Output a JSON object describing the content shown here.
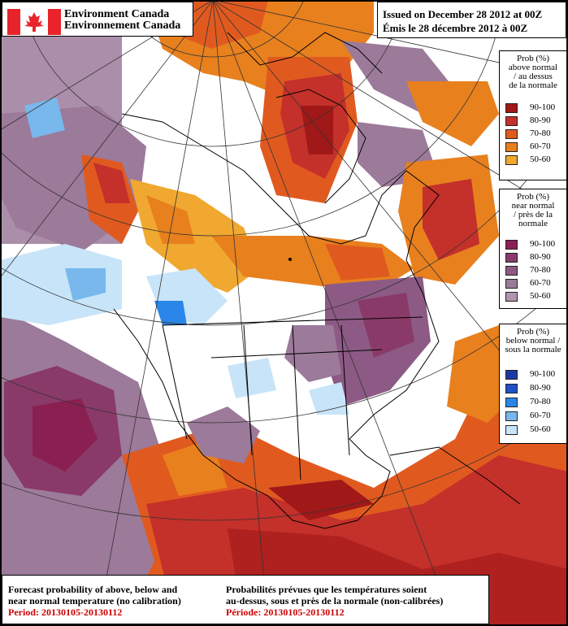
{
  "header": {
    "org_en": "Environment Canada",
    "org_fr": "Environnement Canada",
    "issued_en": "Issued on December 28 2012 at 00Z",
    "issued_fr": "Émis le 28 décembre 2012 à 00Z"
  },
  "legends": {
    "above": {
      "title": [
        "Prob (%)",
        "above normal",
        "/ au dessus",
        "de la normale"
      ],
      "items": [
        {
          "label": "90-100",
          "color": "#a01818"
        },
        {
          "label": "80-90",
          "color": "#c4302a"
        },
        {
          "label": "70-80",
          "color": "#e05a20"
        },
        {
          "label": "60-70",
          "color": "#e8801e"
        },
        {
          "label": "50-60",
          "color": "#f0a830"
        }
      ]
    },
    "near": {
      "title": [
        "Prob (%)",
        "near normal",
        "/ près de la",
        "normale"
      ],
      "items": [
        {
          "label": "90-100",
          "color": "#8a1f52"
        },
        {
          "label": "80-90",
          "color": "#8a3a68"
        },
        {
          "label": "70-80",
          "color": "#8c5a84"
        },
        {
          "label": "60-70",
          "color": "#9c7a9a"
        },
        {
          "label": "50-60",
          "color": "#b095b0"
        }
      ]
    },
    "below": {
      "title": [
        "Prob (%)",
        "below normal /",
        "sous la normale"
      ],
      "items": [
        {
          "label": "90-100",
          "color": "#1e3aa0"
        },
        {
          "label": "80-90",
          "color": "#2050c8"
        },
        {
          "label": "70-80",
          "color": "#2a86e8"
        },
        {
          "label": "60-70",
          "color": "#78b8ec"
        },
        {
          "label": "50-60",
          "color": "#c8e4f8"
        }
      ]
    }
  },
  "footer": {
    "en_line1": "Forecast probability of above, below and",
    "en_line2": "near normal temperature (no calibration)",
    "en_period": "Period: 20130105-20130112",
    "fr_line1": "Probabilités prévues que les températures soient",
    "fr_line2": "au-dessus, sous et près de la normale (non-calibrées)",
    "fr_period": "Période: 20130105-20130112"
  }
}
